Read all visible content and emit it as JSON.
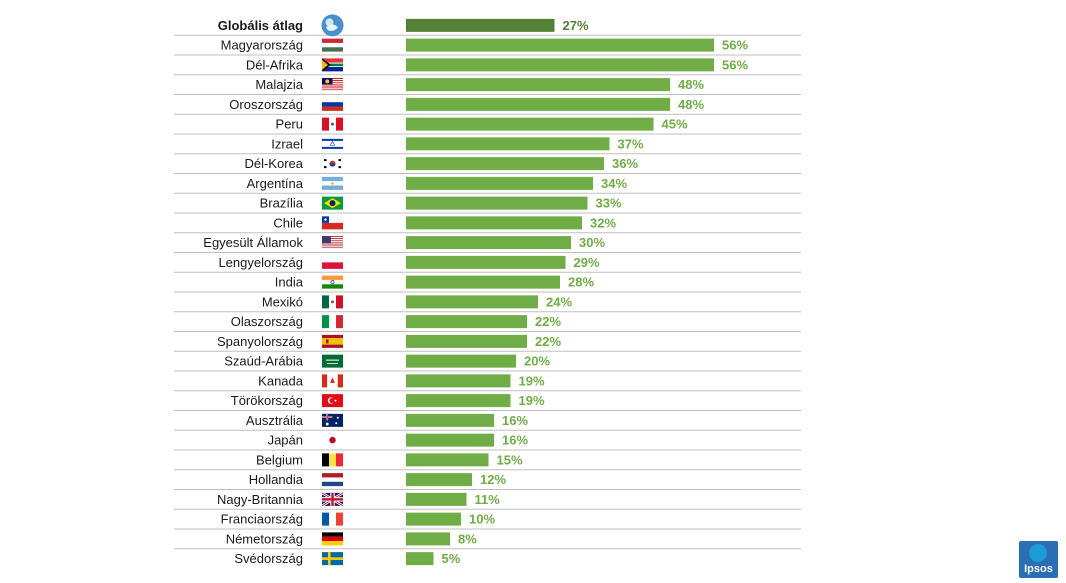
{
  "chart_data": {
    "type": "bar",
    "orientation": "horizontal",
    "categories": [
      "Globális átlag",
      "Magyarország",
      "Dél-Afrika",
      "Malajzia",
      "Oroszország",
      "Peru",
      "Izrael",
      "Dél-Korea",
      "Argentína",
      "Brazília",
      "Chile",
      "Egyesült Államok",
      "Lengyelország",
      "India",
      "Mexikó",
      "Olaszország",
      "Spanyolország",
      "Szaúd-Arábia",
      "Kanada",
      "Törökország",
      "Ausztrália",
      "Japán",
      "Belgium",
      "Hollandia",
      "Nagy-Britannia",
      "Franciaország",
      "Németország",
      "Svédország"
    ],
    "values": [
      27,
      56,
      56,
      48,
      48,
      45,
      37,
      36,
      34,
      33,
      32,
      30,
      29,
      28,
      24,
      22,
      22,
      20,
      19,
      19,
      16,
      16,
      15,
      12,
      11,
      10,
      8,
      5
    ],
    "value_labels": [
      "27%",
      "56%",
      "56%",
      "48%",
      "48%",
      "45%",
      "37%",
      "36%",
      "34%",
      "33%",
      "32%",
      "30%",
      "29%",
      "28%",
      "24%",
      "22%",
      "22%",
      "20%",
      "19%",
      "19%",
      "16%",
      "16%",
      "15%",
      "12%",
      "11%",
      "10%",
      "8%",
      "5%"
    ],
    "flags": [
      "globe-icon",
      "hungary-flag-icon",
      "south-africa-flag-icon",
      "malaysia-flag-icon",
      "russia-flag-icon",
      "peru-flag-icon",
      "israel-flag-icon",
      "south-korea-flag-icon",
      "argentina-flag-icon",
      "brazil-flag-icon",
      "chile-flag-icon",
      "usa-flag-icon",
      "poland-flag-icon",
      "india-flag-icon",
      "mexico-flag-icon",
      "italy-flag-icon",
      "spain-flag-icon",
      "saudi-arabia-flag-icon",
      "canada-flag-icon",
      "turkey-flag-icon",
      "australia-flag-icon",
      "japan-flag-icon",
      "belgium-flag-icon",
      "netherlands-flag-icon",
      "uk-flag-icon",
      "france-flag-icon",
      "germany-flag-icon",
      "sweden-flag-icon"
    ],
    "highlight_index": 0,
    "xlim": [
      0,
      60
    ],
    "grid": false,
    "legend": "none",
    "colors": {
      "bar": "#70ad47",
      "highlight_bar": "#538135",
      "label": "#70ad47",
      "highlight_label": "#538135",
      "separator": "#bfbfbf"
    }
  },
  "logo": {
    "text": "Ipsos",
    "color": "#2a6fb5"
  }
}
